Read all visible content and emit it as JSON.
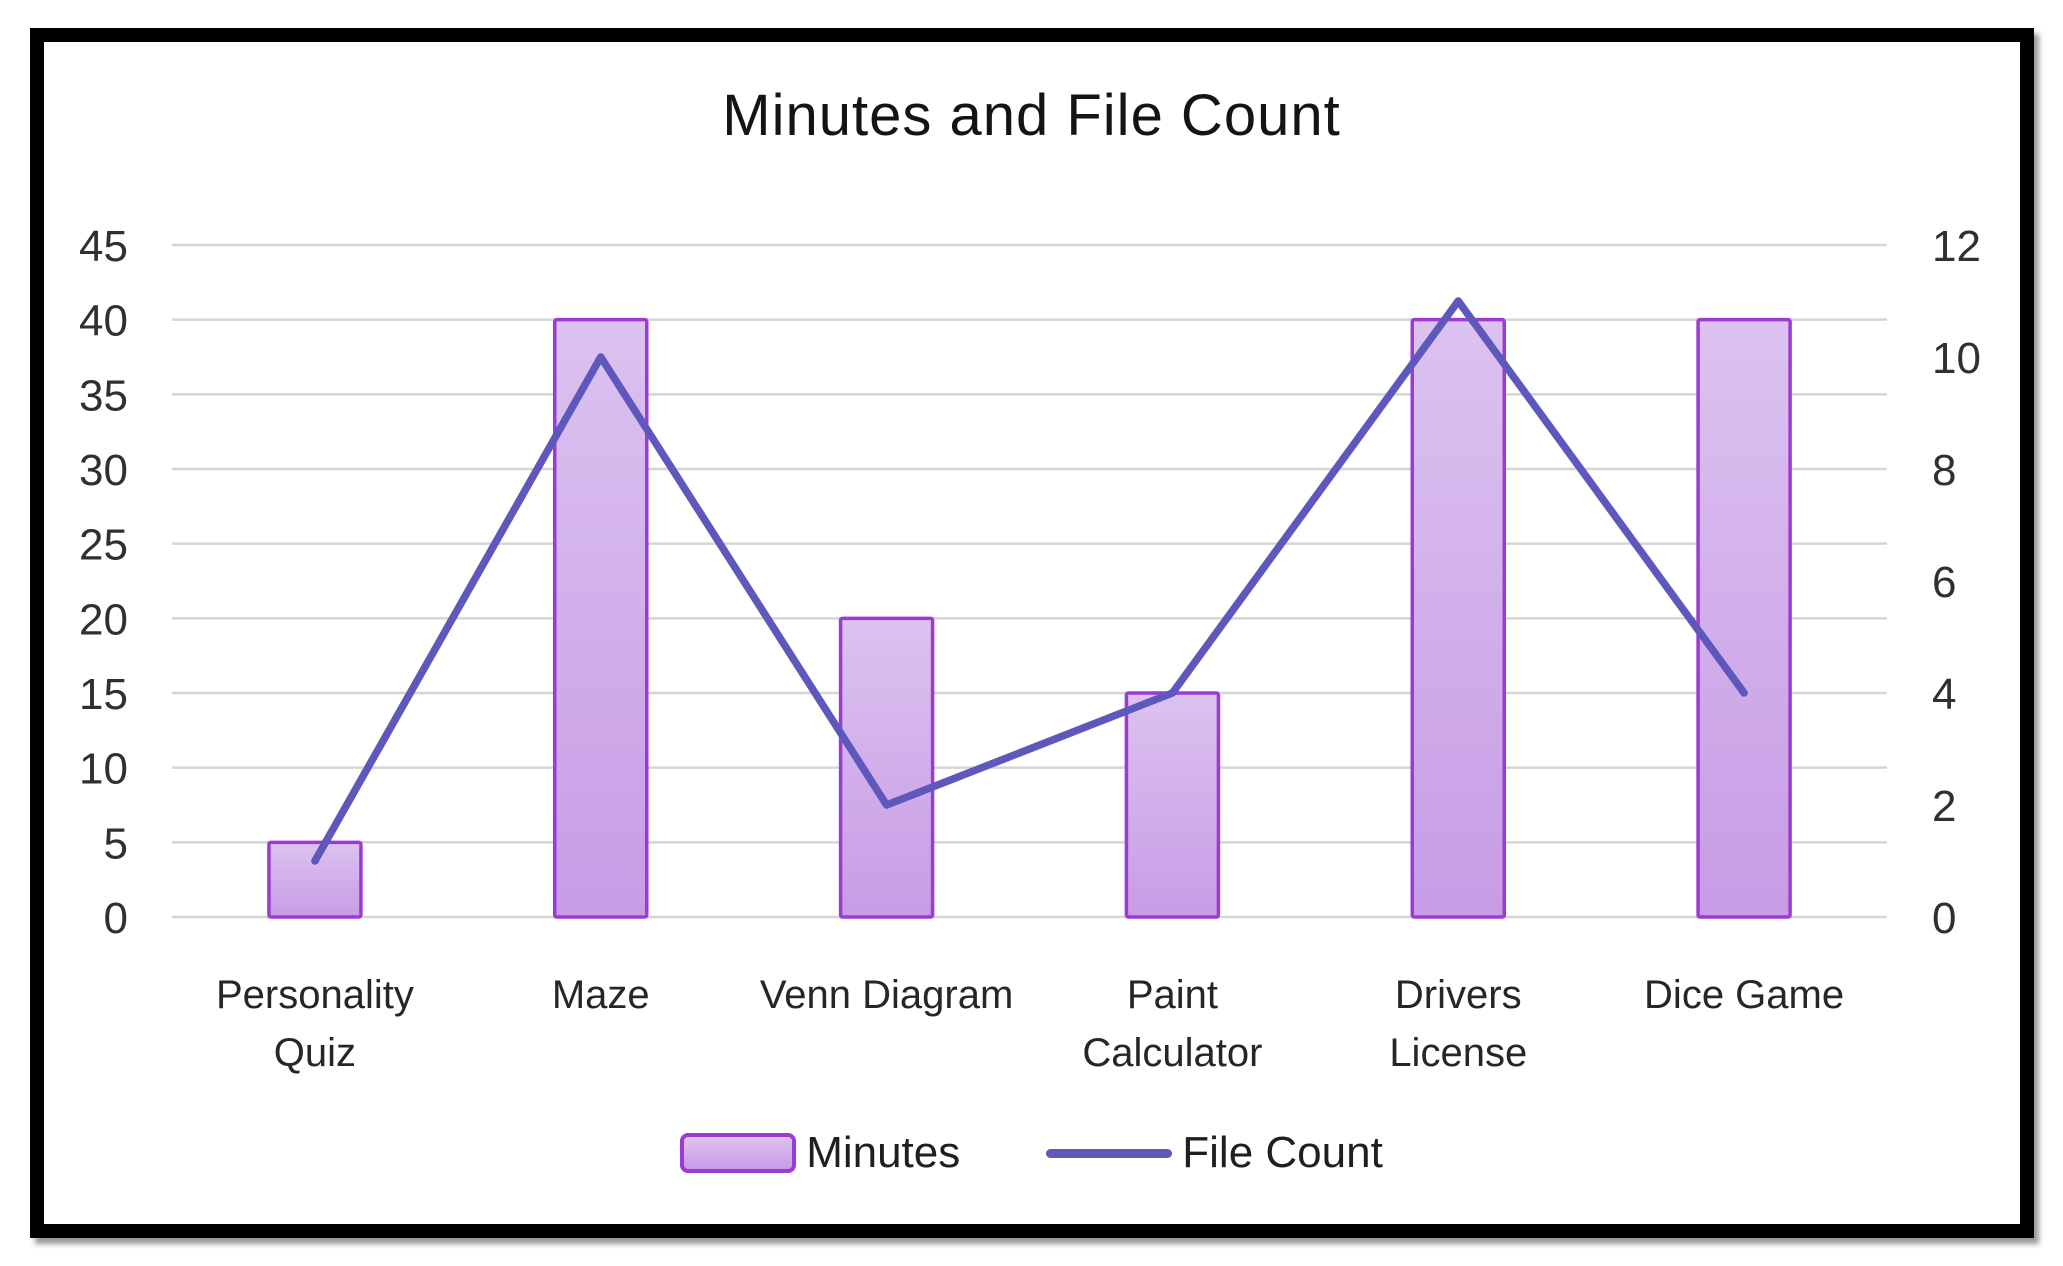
{
  "chart_data": {
    "type": "combo",
    "title": "Minutes and File Count",
    "categories": [
      "Personality Quiz",
      "Maze",
      "Venn Diagram",
      "Paint Calculator",
      "Drivers License",
      "Dice Game"
    ],
    "series": [
      {
        "name": "Minutes",
        "type": "bar",
        "axis": "left",
        "values": [
          5,
          40,
          20,
          15,
          40,
          40
        ],
        "fill_top": "#DCC2F0",
        "fill_bottom": "#C79CE5",
        "border_color": "#9C3BD3"
      },
      {
        "name": "File Count",
        "type": "line",
        "axis": "right",
        "values": [
          1,
          10,
          2,
          4,
          11,
          4
        ],
        "color": "#5E58BC"
      }
    ],
    "left_axis": {
      "min": 0,
      "max": 45,
      "step": 5,
      "ticks": [
        45,
        40,
        35,
        30,
        25,
        20,
        15,
        10,
        5,
        0
      ]
    },
    "right_axis": {
      "min": 0,
      "max": 12,
      "step": 2,
      "ticks": [
        12,
        10,
        8,
        6,
        4,
        2,
        0
      ]
    },
    "grid": true,
    "gridline_color": "#D5D5D5",
    "legend_position": "bottom",
    "text_color": "#303030",
    "title_color": "#141414",
    "frame_border_color": "#000000",
    "background_color": "#FFFFFF"
  }
}
